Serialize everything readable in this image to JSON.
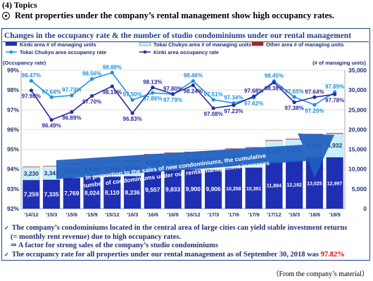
{
  "header": {
    "topics": "(4) Topics",
    "headline": "Rent properties under the company’s rental management show high occupancy rates."
  },
  "box_title": "Changes in the occupancy rate & the number of studio condominiums under our rental management",
  "notes": {
    "line1": "The company’s condominiums located in the central area of large cities can yield stable investment returns",
    "line2": "(= monthly rent revenue) due to high occupancy rates.",
    "line3": "⇒ A factor for strong sales of the company’s studio condominiums",
    "line4_prefix": "The occupancy rate for all properties under our rental management as of September 30, 2018 was ",
    "line4_value": "97.82%"
  },
  "source": "（From the company’s material）",
  "colors": {
    "kinki_units": "#1f2fb4",
    "tokai_units": "#c8f0fc",
    "other_units": "#b22222",
    "tokai_rate": "#1e90dd",
    "kinki_rate": "#2a2aa0",
    "frame": "#1f3f8f",
    "arrow": "#1e5fc0"
  },
  "chart_data": {
    "type": "bar",
    "categories": [
      "'14/12",
      "'15/3",
      "'15/6",
      "'15/9",
      "'15/12",
      "'16/3",
      "'16/6",
      "'16/9",
      "'16/12",
      "'17/3",
      "'17/6",
      "'17/9",
      "'17/12",
      "'18/3",
      "'18/6",
      "'18/9"
    ],
    "series": [
      {
        "name": "Kinki area # of managing units",
        "kind": "stacked-bar",
        "axis": "right",
        "values": [
          7259,
          7335,
          7769,
          8024,
          8110,
          8236,
          9557,
          9833,
          9900,
          9906,
          10358,
          10391,
          11884,
          12192,
          13025,
          12997
        ]
      },
      {
        "name": "Tokai Chukyo area # of managing units",
        "kind": "stacked-bar",
        "axis": "right",
        "values": [
          3230,
          3343,
          3550,
          3690,
          3789,
          3795,
          4106,
          4200,
          4340,
          4456,
          4703,
          5002,
          5277,
          5315,
          5710,
          5932
        ]
      },
      {
        "name": "Other area # of managing units",
        "kind": "stacked-bar",
        "axis": "right",
        "values": [
          120,
          120,
          130,
          130,
          130,
          130,
          140,
          140,
          140,
          140,
          150,
          150,
          160,
          160,
          170,
          170
        ]
      },
      {
        "name": "Tokai Chukyo area occupancy rate",
        "kind": "line",
        "axis": "left",
        "values": [
          98.47,
          97.64,
          97.73,
          98.56,
          98.88,
          97.5,
          97.86,
          97.79,
          98.46,
          97.51,
          97.34,
          97.62,
          98.45,
          97.65,
          97.25,
          97.89
        ]
      },
      {
        "name": "Kinki area occupancy rate",
        "kind": "line",
        "axis": "left",
        "values": [
          97.98,
          96.49,
          96.89,
          97.7,
          98.19,
          96.83,
          98.13,
          97.8,
          98.24,
          97.08,
          97.23,
          97.68,
          98.38,
          97.38,
          97.64,
          97.78
        ]
      }
    ],
    "bar_labels": {
      "kinki": [
        "7,259",
        "7,335",
        "7,769",
        "8,024",
        "8,110",
        "8,236",
        "9,557",
        "9,833",
        "9,900",
        "9,906",
        "10,358",
        "10,391",
        "11,884",
        "12,192",
        "13,025",
        "12,997"
      ],
      "tokai": [
        "3,230",
        "3,343",
        "3,550",
        "3,690",
        "3,789",
        "3,795",
        "4,106",
        "4,200",
        "4,340",
        "4,456",
        "4,703",
        "5,002",
        "5,277",
        "5,315",
        "5,710",
        "5,932"
      ]
    },
    "line_labels": {
      "tokai": [
        "98.47%",
        "97.64%",
        "97.73%",
        "98.56%",
        "98.88%",
        "97.50%",
        "97.86%",
        "97.79%",
        "98.46%",
        "97.51%",
        "97.34%",
        "97.62%",
        "98.45%",
        "97.65%",
        "97.25%",
        "97.89%"
      ],
      "kinki": [
        "97.98%",
        "96.49%",
        "96.89%",
        "97.70%",
        "98.19%",
        "96.83%",
        "98.13%",
        "97.80%",
        "98.24%",
        "97.08%",
        "97.23%",
        "97.68%",
        "98.38%",
        "97.38%",
        "97.64%",
        "97.78%"
      ]
    },
    "left_axis": {
      "label": "(Occupancy rate)",
      "range": [
        92,
        99
      ],
      "ticks": [
        "92%",
        "93%",
        "94%",
        "95%",
        "96%",
        "97%",
        "98%",
        "99%"
      ]
    },
    "right_axis": {
      "label": "(# of managing units)",
      "range": [
        0,
        35000
      ],
      "ticks": [
        "0",
        "5,000",
        "10,000",
        "15,000",
        "20,000",
        "25,000",
        "30,000",
        "35,000"
      ]
    },
    "arrow_text": {
      "line1": "In proportion to the sales of new condominiums, the cumulative",
      "line2": "number of condominiums under our rental management increases"
    },
    "legend_position": "top"
  }
}
